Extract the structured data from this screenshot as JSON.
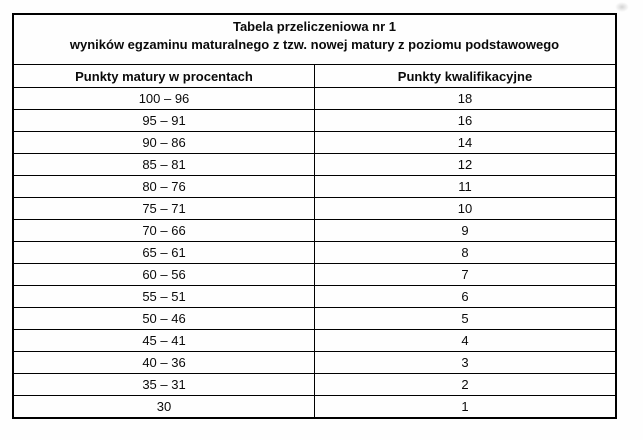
{
  "table": {
    "title_line1": "Tabela przeliczeniowa nr 1",
    "title_line2": "wyników egzaminu maturalnego z tzw. nowej matury z poziomu podstawowego",
    "columns": [
      "Punkty matury w procentach",
      "Punkty kwalifikacyjne"
    ],
    "rows": [
      {
        "range": "100 – 96",
        "points": "18"
      },
      {
        "range": "95 – 91",
        "points": "16"
      },
      {
        "range": "90 – 86",
        "points": "14"
      },
      {
        "range": "85 – 81",
        "points": "12"
      },
      {
        "range": "80 – 76",
        "points": "11"
      },
      {
        "range": "75 – 71",
        "points": "10"
      },
      {
        "range": "70 – 66",
        "points": "9"
      },
      {
        "range": "65 – 61",
        "points": "8"
      },
      {
        "range": "60 – 56",
        "points": "7"
      },
      {
        "range": "55 – 51",
        "points": "6"
      },
      {
        "range": "50 – 46",
        "points": "5"
      },
      {
        "range": "45 – 41",
        "points": "4"
      },
      {
        "range": "40 – 36",
        "points": "3"
      },
      {
        "range": "35 – 31",
        "points": "2"
      },
      {
        "range": "30",
        "points": "1"
      }
    ]
  },
  "colors": {
    "border": "#000000",
    "text": "#0a0a0a",
    "background": "#fefefe"
  }
}
